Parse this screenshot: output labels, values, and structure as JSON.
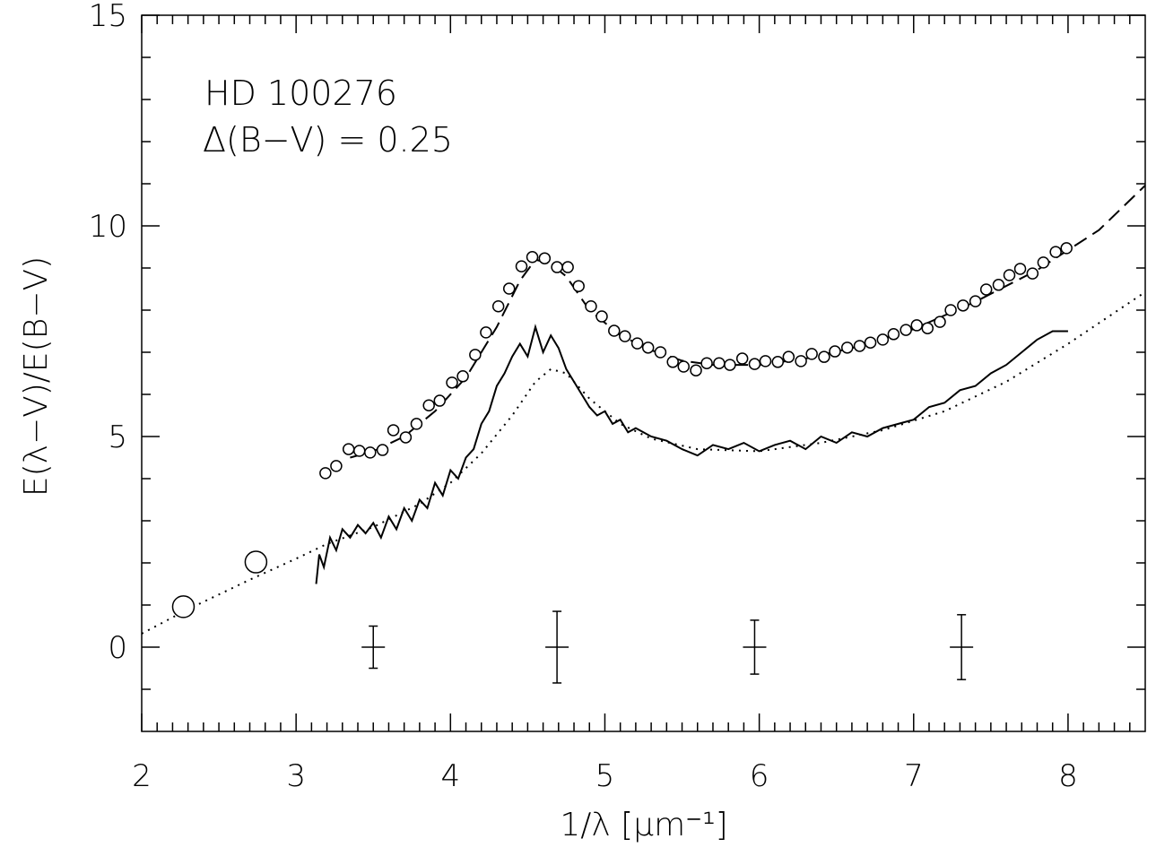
{
  "chart_data": {
    "type": "line",
    "annotations": [
      "HD 100276",
      "Δ(B−V) = 0.25"
    ],
    "xlabel": "1/λ [μm⁻¹]",
    "ylabel": "E(λ−V)/E(B−V)",
    "xlim": [
      2,
      8.5
    ],
    "ylim": [
      -2,
      15
    ],
    "xticks": [
      2,
      3,
      4,
      5,
      6,
      7,
      8
    ],
    "yticks": [
      0,
      5,
      10,
      15
    ],
    "xminorticks": [
      2.1,
      2.2,
      2.3,
      2.4,
      2.5,
      2.6,
      2.7,
      2.8,
      2.9,
      3.1,
      3.2,
      3.3,
      3.4,
      3.5,
      3.6,
      3.7,
      3.8,
      3.9,
      4.1,
      4.2,
      4.3,
      4.4,
      4.5,
      4.6,
      4.7,
      4.8,
      4.9,
      5.1,
      5.2,
      5.3,
      5.4,
      5.5,
      5.6,
      5.7,
      5.8,
      5.9,
      6.1,
      6.2,
      6.3,
      6.4,
      6.5,
      6.6,
      6.7,
      6.8,
      6.9,
      7.1,
      7.2,
      7.3,
      7.4,
      7.5,
      7.6,
      7.7,
      7.8,
      7.9,
      8.1,
      8.2,
      8.3,
      8.4
    ],
    "yminorticks": [
      -1,
      1,
      2,
      3,
      4,
      6,
      7,
      8,
      9,
      11,
      12,
      13,
      14
    ],
    "series": [
      {
        "style": "dotted",
        "color": "#000000",
        "x": [
          2,
          2.3,
          2.7,
          3.0,
          3.2,
          3.5,
          3.8,
          4.0,
          4.2,
          4.4,
          4.55,
          4.65,
          4.75,
          4.9,
          5.1,
          5.3,
          5.6,
          6.0,
          6.4,
          6.8,
          7.2,
          7.6,
          8.0,
          8.5
        ],
        "values": [
          0.32,
          0.9,
          1.6,
          2.1,
          2.45,
          2.85,
          3.4,
          3.9,
          4.6,
          5.5,
          6.3,
          6.6,
          6.5,
          5.9,
          5.3,
          4.95,
          4.7,
          4.65,
          4.85,
          5.15,
          5.6,
          6.3,
          7.2,
          8.43
        ]
      },
      {
        "style": "solid",
        "color": "#000000",
        "x": [
          3.13,
          3.15,
          3.18,
          3.22,
          3.26,
          3.3,
          3.35,
          3.4,
          3.45,
          3.5,
          3.55,
          3.6,
          3.65,
          3.7,
          3.75,
          3.8,
          3.85,
          3.9,
          3.95,
          4.0,
          4.05,
          4.1,
          4.15,
          4.2,
          4.25,
          4.3,
          4.35,
          4.4,
          4.45,
          4.5,
          4.55,
          4.6,
          4.65,
          4.7,
          4.75,
          4.8,
          4.85,
          4.9,
          4.95,
          5.0,
          5.05,
          5.1,
          5.15,
          5.2,
          5.3,
          5.4,
          5.5,
          5.6,
          5.7,
          5.8,
          5.9,
          6.0,
          6.1,
          6.2,
          6.3,
          6.4,
          6.5,
          6.6,
          6.7,
          6.8,
          6.9,
          7.0,
          7.1,
          7.2,
          7.3,
          7.4,
          7.5,
          7.6,
          7.7,
          7.8,
          7.9,
          8.0
        ],
        "values": [
          1.5,
          2.2,
          1.9,
          2.6,
          2.3,
          2.8,
          2.6,
          2.9,
          2.7,
          2.95,
          2.6,
          3.1,
          2.8,
          3.3,
          3.0,
          3.5,
          3.3,
          3.9,
          3.6,
          4.2,
          4.0,
          4.5,
          4.7,
          5.3,
          5.6,
          6.2,
          6.5,
          6.9,
          7.2,
          6.9,
          7.6,
          7.0,
          7.4,
          7.1,
          6.6,
          6.3,
          6.0,
          5.7,
          5.5,
          5.6,
          5.3,
          5.4,
          5.1,
          5.2,
          5.0,
          4.9,
          4.7,
          4.55,
          4.8,
          4.7,
          4.85,
          4.65,
          4.8,
          4.9,
          4.7,
          5.0,
          4.85,
          5.1,
          5.0,
          5.2,
          5.3,
          5.4,
          5.7,
          5.8,
          6.1,
          6.2,
          6.5,
          6.7,
          7.0,
          7.3,
          7.5,
          7.5
        ]
      },
      {
        "style": "dashed",
        "color": "#000000",
        "x": [
          3.35,
          3.5,
          3.7,
          3.9,
          4.1,
          4.3,
          4.45,
          4.55,
          4.65,
          4.75,
          4.9,
          5.1,
          5.3,
          5.5,
          5.7,
          6.0,
          6.3,
          6.6,
          7.0,
          7.4,
          7.8,
          8.2,
          8.5
        ],
        "values": [
          4.5,
          4.65,
          5.0,
          5.6,
          6.4,
          7.6,
          8.7,
          9.2,
          9.1,
          8.8,
          8.0,
          7.4,
          7.05,
          6.8,
          6.7,
          6.7,
          6.85,
          7.1,
          7.55,
          8.2,
          8.95,
          9.9,
          10.96
        ]
      },
      {
        "style": "open-circle",
        "color": "#000000",
        "x": [
          3.19,
          3.26,
          3.34,
          3.41,
          3.48,
          3.56,
          3.63,
          3.71,
          3.78,
          3.86,
          3.93,
          4.01,
          4.08,
          4.16,
          4.23,
          4.31,
          4.38,
          4.46,
          4.53,
          4.61,
          4.69,
          4.76,
          4.83,
          4.91,
          4.98,
          5.06,
          5.13,
          5.21,
          5.28,
          5.36,
          5.44,
          5.51,
          5.59,
          5.66,
          5.74,
          5.81,
          5.89,
          5.97,
          6.04,
          6.12,
          6.19,
          6.27,
          6.34,
          6.42,
          6.49,
          6.57,
          6.65,
          6.72,
          6.8,
          6.87,
          6.95,
          7.02,
          7.09,
          7.17,
          7.24,
          7.32,
          7.4,
          7.47,
          7.55,
          7.62,
          7.69,
          7.77,
          7.84,
          7.92,
          7.99
        ],
        "values": [
          4.13,
          4.3,
          4.7,
          4.66,
          4.62,
          4.68,
          5.15,
          4.98,
          5.3,
          5.74,
          5.85,
          6.28,
          6.43,
          6.94,
          7.47,
          8.09,
          8.51,
          9.04,
          9.26,
          9.23,
          9.02,
          9.02,
          8.57,
          8.09,
          7.85,
          7.51,
          7.38,
          7.21,
          7.11,
          7.0,
          6.77,
          6.66,
          6.57,
          6.74,
          6.74,
          6.7,
          6.85,
          6.72,
          6.79,
          6.77,
          6.89,
          6.79,
          6.96,
          6.89,
          7.02,
          7.11,
          7.15,
          7.23,
          7.3,
          7.43,
          7.53,
          7.64,
          7.57,
          7.72,
          8.0,
          8.11,
          8.21,
          8.49,
          8.6,
          8.83,
          8.98,
          8.87,
          9.13,
          9.38,
          9.47
        ]
      },
      {
        "style": "large-open-circle",
        "color": "#000000",
        "x": [
          2.27,
          2.74
        ],
        "values": [
          0.96,
          2.02
        ]
      }
    ],
    "errorbars": {
      "x": [
        3.5,
        4.69,
        5.97,
        7.31
      ],
      "values": [
        0,
        0,
        0,
        0
      ],
      "errors": [
        0.5,
        0.85,
        0.64,
        0.77
      ]
    }
  }
}
